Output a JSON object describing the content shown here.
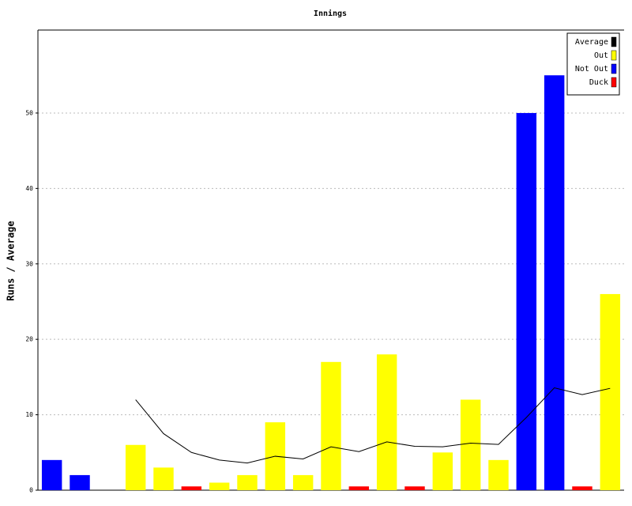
{
  "chart_data": {
    "type": "bar",
    "title": "Innings",
    "y_label": "Runs / Average",
    "categories": [
      null,
      null,
      null,
      null,
      null,
      null,
      null,
      null,
      null,
      null,
      null,
      null,
      null,
      null,
      null,
      null,
      null,
      null,
      null,
      null,
      null
    ],
    "series": [
      {
        "name": "Average",
        "color": "#000000",
        "kind": "line",
        "values": [
          null,
          null,
          null,
          12,
          7.5,
          5,
          4,
          3.6,
          4.5,
          4.14,
          5.75,
          5.11,
          6.4,
          5.82,
          5.75,
          6.23,
          6.07,
          9.64,
          13.57,
          12.67,
          13.5
        ]
      },
      {
        "name": "Out",
        "color": "#ffff00",
        "kind": "bar",
        "values": [
          null,
          null,
          null,
          6,
          3,
          null,
          1,
          2,
          9,
          2,
          17,
          null,
          18,
          null,
          5,
          12,
          4,
          null,
          null,
          null,
          26
        ]
      },
      {
        "name": "Not Out",
        "color": "#0000ff",
        "kind": "bar",
        "values": [
          4,
          2,
          null,
          null,
          null,
          null,
          null,
          null,
          null,
          null,
          null,
          null,
          null,
          null,
          null,
          null,
          null,
          50,
          55,
          null,
          null
        ]
      },
      {
        "name": "Duck",
        "color": "#ff0000",
        "kind": "bar",
        "values": [
          null,
          null,
          null,
          null,
          null,
          0.5,
          null,
          null,
          null,
          null,
          null,
          0.5,
          null,
          0.5,
          null,
          null,
          null,
          null,
          null,
          0.5,
          null
        ]
      }
    ],
    "ylim": [
      0,
      61
    ],
    "yticks": [
      0,
      10,
      20,
      30,
      40,
      50
    ],
    "grid": true,
    "legend": "top-right"
  }
}
